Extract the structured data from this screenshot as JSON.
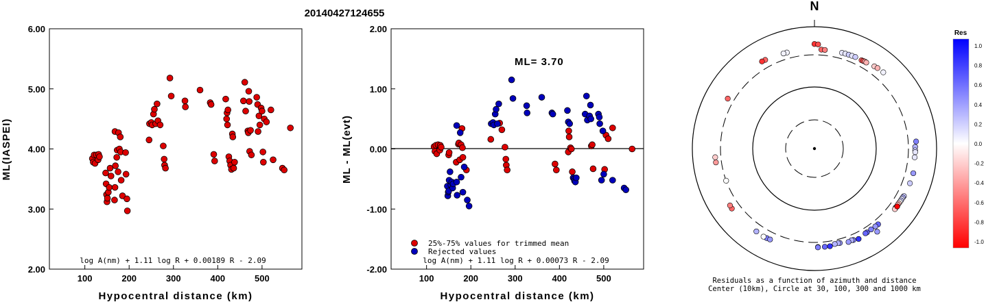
{
  "title": "20140427124655",
  "chart_data": [
    {
      "type": "scatter",
      "xlabel": "Hypocentral distance (km)",
      "ylabel": "ML(IASPEI)",
      "xlim": [
        20,
        590
      ],
      "ylim": [
        2.0,
        6.0
      ],
      "x_ticks": [
        "100",
        "200",
        "300",
        "400",
        "500"
      ],
      "y_ticks": [
        "2.00",
        "3.00",
        "4.00",
        "5.00",
        "6.00"
      ],
      "formula": "log A(nm) + 1.11 log R + 0.00189 R - 2.09",
      "points": [
        [
          117,
          3.84
        ],
        [
          119,
          3.78
        ],
        [
          121,
          3.9
        ],
        [
          123,
          3.76
        ],
        [
          126,
          3.9
        ],
        [
          130,
          3.82
        ],
        [
          131,
          3.91
        ],
        [
          133,
          3.87
        ],
        [
          147,
          3.6
        ],
        [
          148,
          3.42
        ],
        [
          149,
          3.24
        ],
        [
          150,
          3.12
        ],
        [
          151,
          3.18
        ],
        [
          153,
          3.28
        ],
        [
          155,
          3.36
        ],
        [
          157,
          3.68
        ],
        [
          159,
          3.55
        ],
        [
          167,
          3.15
        ],
        [
          168,
          3.36
        ],
        [
          168,
          4.29
        ],
        [
          169,
          3.72
        ],
        [
          172,
          3.86
        ],
        [
          173,
          3.98
        ],
        [
          175,
          3.62
        ],
        [
          176,
          4.27
        ],
        [
          178,
          4.0
        ],
        [
          180,
          4.2
        ],
        [
          181,
          3.95
        ],
        [
          182,
          3.48
        ],
        [
          185,
          3.22
        ],
        [
          192,
          3.94
        ],
        [
          193,
          3.58
        ],
        [
          195,
          3.17
        ],
        [
          196,
          2.97
        ],
        [
          245,
          4.15
        ],
        [
          246,
          4.42
        ],
        [
          250,
          4.44
        ],
        [
          252,
          4.4
        ],
        [
          255,
          4.58
        ],
        [
          257,
          4.66
        ],
        [
          260,
          4.42
        ],
        [
          263,
          4.75
        ],
        [
          265,
          4.47
        ],
        [
          270,
          4.4
        ],
        [
          277,
          4.05
        ],
        [
          279,
          3.83
        ],
        [
          280,
          3.73
        ],
        [
          282,
          3.68
        ],
        [
          292,
          5.18
        ],
        [
          295,
          4.88
        ],
        [
          326,
          4.8
        ],
        [
          327,
          4.7
        ],
        [
          360,
          4.98
        ],
        [
          383,
          4.77
        ],
        [
          385,
          4.74
        ],
        [
          391,
          3.91
        ],
        [
          393,
          3.8
        ],
        [
          418,
          4.83
        ],
        [
          420,
          4.5
        ],
        [
          421,
          4.6
        ],
        [
          422,
          4.4
        ],
        [
          423,
          4.65
        ],
        [
          425,
          3.87
        ],
        [
          427,
          3.8
        ],
        [
          429,
          3.73
        ],
        [
          431,
          3.66
        ],
        [
          433,
          4.25
        ],
        [
          434,
          4.2
        ],
        [
          436,
          3.68
        ],
        [
          438,
          3.78
        ],
        [
          458,
          4.8
        ],
        [
          461,
          5.11
        ],
        [
          463,
          4.63
        ],
        [
          468,
          4.3
        ],
        [
          469,
          4.27
        ],
        [
          470,
          4.96
        ],
        [
          471,
          4.79
        ],
        [
          472,
          3.96
        ],
        [
          474,
          4.31
        ],
        [
          476,
          3.9
        ],
        [
          488,
          4.86
        ],
        [
          490,
          4.74
        ],
        [
          491,
          4.29
        ],
        [
          493,
          4.55
        ],
        [
          495,
          4.4
        ],
        [
          498,
          4.68
        ],
        [
          500,
          4.63
        ],
        [
          502,
          3.95
        ],
        [
          503,
          3.78
        ],
        [
          505,
          4.5
        ],
        [
          510,
          4.45
        ],
        [
          520,
          4.65
        ],
        [
          525,
          3.82
        ],
        [
          546,
          3.68
        ],
        [
          550,
          3.65
        ],
        [
          564,
          4.35
        ]
      ]
    },
    {
      "type": "scatter",
      "xlabel": "Hypocentral distance (km)",
      "ylabel": "ML - ML(evt)",
      "xlim": [
        20,
        590
      ],
      "ylim": [
        -2.0,
        2.0
      ],
      "x_ticks": [
        "100",
        "200",
        "300",
        "400",
        "500"
      ],
      "y_ticks": [
        "-2.00",
        "-1.00",
        "0.00",
        "1.00",
        "2.00"
      ],
      "annotation": "ML= 3.70",
      "formula": "log A(nm) + 1.11 log R + 0.00073 R - 2.09",
      "legend": [
        "25%-75% values for trimmed mean",
        "Rejected values"
      ],
      "legend_colors": [
        "#dd0000",
        "#0000bb"
      ],
      "series": [
        {
          "name": "25%-75% values for trimmed mean",
          "color": "#dd0000",
          "points": [
            [
              117,
              0.04
            ],
            [
              119,
              -0.04
            ],
            [
              121,
              0.06
            ],
            [
              123,
              -0.08
            ],
            [
              126,
              0.07
            ],
            [
              130,
              -0.02
            ],
            [
              131,
              0.06
            ],
            [
              133,
              0.03
            ],
            [
              150,
              -0.1
            ],
            [
              151,
              -0.06
            ],
            [
              167,
              -0.22
            ],
            [
              172,
              0.08
            ],
            [
              173,
              0.1
            ],
            [
              175,
              -0.18
            ],
            [
              178,
              0.07
            ],
            [
              180,
              0.34
            ],
            [
              181,
              0.02
            ],
            [
              182,
              -0.14
            ],
            [
              190,
              -0.35
            ],
            [
              245,
              0.16
            ],
            [
              265,
              0.43
            ],
            [
              270,
              0.32
            ],
            [
              277,
              0.03
            ],
            [
              279,
              -0.17
            ],
            [
              280,
              -0.27
            ],
            [
              282,
              -0.35
            ],
            [
              390,
              -0.25
            ],
            [
              393,
              -0.35
            ],
            [
              420,
              -0.05
            ],
            [
              421,
              0.3
            ],
            [
              422,
              0.2
            ],
            [
              425,
              0.02
            ],
            [
              427,
              0.0
            ],
            [
              429,
              -0.38
            ],
            [
              472,
              0.05
            ],
            [
              474,
              0.07
            ],
            [
              476,
              -0.33
            ],
            [
              502,
              -0.34
            ],
            [
              505,
              0.23
            ],
            [
              510,
              0.17
            ],
            [
              520,
              0.35
            ],
            [
              564,
              0.0
            ]
          ]
        },
        {
          "name": "Rejected values",
          "color": "#0000bb",
          "points": [
            [
              147,
              -0.62
            ],
            [
              148,
              -0.78
            ],
            [
              149,
              -0.72
            ],
            [
              150,
              -0.7
            ],
            [
              151,
              -0.52
            ],
            [
              153,
              -0.38
            ],
            [
              155,
              -0.6
            ],
            [
              157,
              -0.55
            ],
            [
              159,
              -0.65
            ],
            [
              160,
              -0.58
            ],
            [
              168,
              0.39
            ],
            [
              168,
              -0.55
            ],
            [
              169,
              -0.77
            ],
            [
              176,
              0.27
            ],
            [
              178,
              -0.47
            ],
            [
              182,
              -0.72
            ],
            [
              185,
              -0.3
            ],
            [
              192,
              -0.85
            ],
            [
              196,
              -0.95
            ],
            [
              246,
              0.42
            ],
            [
              250,
              0.44
            ],
            [
              252,
              0.4
            ],
            [
              255,
              0.58
            ],
            [
              257,
              0.66
            ],
            [
              260,
              0.42
            ],
            [
              263,
              0.75
            ],
            [
              292,
              1.15
            ],
            [
              295,
              0.84
            ],
            [
              326,
              0.72
            ],
            [
              327,
              0.6
            ],
            [
              360,
              0.86
            ],
            [
              383,
              0.6
            ],
            [
              385,
              0.58
            ],
            [
              418,
              0.64
            ],
            [
              420,
              0.45
            ],
            [
              423,
              0.42
            ],
            [
              431,
              -0.48
            ],
            [
              433,
              -0.5
            ],
            [
              434,
              -0.53
            ],
            [
              436,
              -0.55
            ],
            [
              438,
              -0.48
            ],
            [
              458,
              0.58
            ],
            [
              461,
              0.88
            ],
            [
              463,
              0.48
            ],
            [
              468,
              0.55
            ],
            [
              470,
              0.73
            ],
            [
              471,
              0.5
            ],
            [
              488,
              0.58
            ],
            [
              490,
              0.53
            ],
            [
              491,
              0.42
            ],
            [
              495,
              -0.52
            ],
            [
              498,
              0.3
            ],
            [
              500,
              -0.42
            ],
            [
              520,
              -0.52
            ],
            [
              546,
              -0.65
            ],
            [
              550,
              -0.68
            ]
          ]
        }
      ]
    },
    {
      "type": "scatter",
      "subtype": "polar",
      "north_label": "N",
      "caption_line1": "Residuals as a function of azimuth and distance",
      "caption_line2": "Center (10km), Circle at 30, 100, 300 and 1000 km",
      "colorbar_title": "Res",
      "colorbar_ticks": [
        "1.0",
        "0.8",
        "0.6",
        "0.4",
        "0.2",
        "0.0",
        "-0.2",
        "-0.4",
        "-0.6",
        "-0.8",
        "-1.0"
      ],
      "rings_km": [
        30,
        100,
        300,
        1000
      ],
      "fields": [
        "azimuth_deg",
        "distance_km",
        "residual"
      ],
      "points": [
        [
          0,
          476,
          -0.8
        ],
        [
          2,
          470,
          -0.7
        ],
        [
          331,
          415,
          -0.6
        ],
        [
          329,
          420,
          -0.8
        ],
        [
          344,
          390,
          0.05
        ],
        [
          342,
          392,
          0.05
        ],
        [
          4,
          378,
          -0.6
        ],
        [
          6,
          378,
          -0.5
        ],
        [
          16,
          385,
          0.1
        ],
        [
          18,
          388,
          0.1
        ],
        [
          20,
          390,
          0.2
        ],
        [
          22,
          392,
          0.1
        ],
        [
          24,
          395,
          0.2
        ],
        [
          28,
          392,
          -0.6
        ],
        [
          29,
          395,
          -0.7
        ],
        [
          30,
          400,
          -0.4
        ],
        [
          31,
          398,
          -0.3
        ],
        [
          36,
          420,
          -0.2
        ],
        [
          38,
          430,
          -0.3
        ],
        [
          42,
          438,
          0.05
        ],
        [
          86,
          420,
          0.5
        ],
        [
          89,
          400,
          0.3
        ],
        [
          91,
          400,
          0.2
        ],
        [
          92,
          402,
          0.1
        ],
        [
          95,
          398,
          0.1
        ],
        [
          104,
          420,
          0.4
        ],
        [
          110,
          415,
          0.2
        ],
        [
          118,
          410,
          0.2
        ],
        [
          119,
          405,
          0.3
        ],
        [
          120,
          403,
          0.1
        ],
        [
          121,
          402,
          0.2
        ],
        [
          122,
          400,
          0.0
        ],
        [
          123,
          398,
          -0.2
        ],
        [
          124,
          396,
          -0.3
        ],
        [
          126,
          395,
          -0.4
        ],
        [
          126,
          398,
          -0.3
        ],
        [
          127,
          400,
          -0.2
        ],
        [
          125,
          405,
          -1.0
        ],
        [
          143,
          465,
          0.4
        ],
        [
          140,
          372,
          0.6
        ],
        [
          142,
          370,
          0.4
        ],
        [
          145,
          368,
          0.5
        ],
        [
          148,
          372,
          0.6
        ],
        [
          149,
          372,
          0.6
        ],
        [
          154,
          400,
          0.8
        ],
        [
          157,
          380,
          0.5
        ],
        [
          158,
          372,
          0.3
        ],
        [
          160,
          380,
          0.4
        ],
        [
          165,
          355,
          0.4
        ],
        [
          166,
          350,
          0.3
        ],
        [
          168,
          352,
          0.3
        ],
        [
          171,
          372,
          0.8
        ],
        [
          174,
          370,
          0.6
        ],
        [
          178,
          367,
          0.9
        ],
        [
          178,
          372,
          0.5
        ],
        [
          208,
          415,
          0.5
        ],
        [
          206,
          410,
          0.4
        ],
        [
          210,
          420,
          0.0
        ],
        [
          215,
          410,
          0.3
        ],
        [
          234,
          425,
          -0.6
        ],
        [
          236,
          420,
          -0.5
        ],
        [
          250,
          300,
          -0.0
        ],
        [
          262,
          380,
          -0.4
        ],
        [
          265,
          382,
          -0.2
        ],
        [
          300,
          390,
          -0.6
        ]
      ]
    }
  ]
}
